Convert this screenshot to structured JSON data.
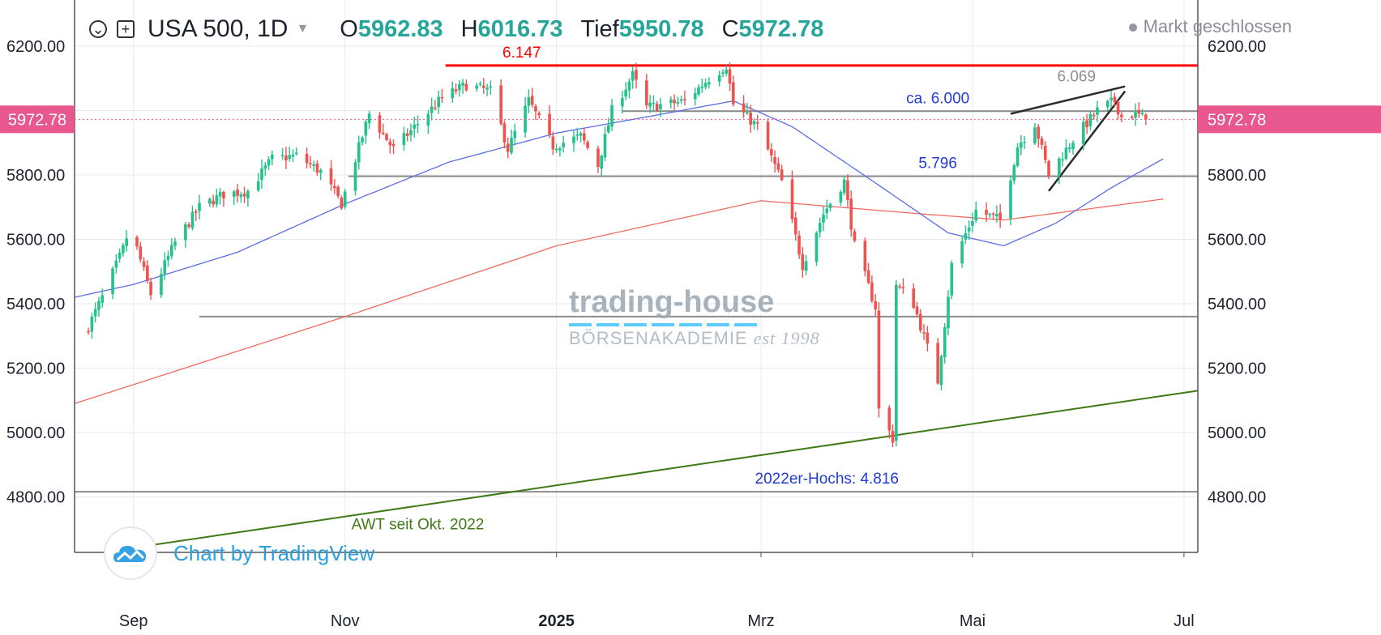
{
  "header": {
    "symbol": "USA 500, 1D",
    "open_label": "O",
    "open": "5962.83",
    "high_label": "H",
    "high": "6016.73",
    "low_label": "Tief",
    "low": "5950.78",
    "close_label": "C",
    "close": "5972.78",
    "icons": [
      "chevron-circle-icon",
      "plus-square-icon",
      "caret-down-icon"
    ]
  },
  "market_status": "Markt geschlossen",
  "branding": {
    "tradingview": "Chart by TradingView",
    "wm_line1": "trading-house",
    "wm_line2": "BÖRSENAKADEMIE",
    "wm_est": "est 1998"
  },
  "colors": {
    "up": "#26c28d",
    "down": "#ef5350",
    "ma50": "#5b6ee6",
    "ma200": "#ef6b61",
    "resistance": "#ff0000",
    "trend": "#3f7a17",
    "price_tag": "#e8578e",
    "grid": "#e6e9f2"
  },
  "chart_data": {
    "type": "candlestick",
    "x_range": [
      "2024-08-15",
      "2025-07-05"
    ],
    "y_range": [
      4650,
      6280
    ],
    "y_ticks": [
      "6200.00",
      "5800.00",
      "5600.00",
      "5400.00",
      "5200.00",
      "5000.00",
      "4800.00"
    ],
    "x_ticks": [
      {
        "label": "Sep",
        "date": "2024-09-01"
      },
      {
        "label": "Nov",
        "date": "2024-11-01"
      },
      {
        "label": "2025",
        "date": "2025-01-01"
      },
      {
        "label": "Mrz",
        "date": "2025-03-01"
      },
      {
        "label": "Mai",
        "date": "2025-05-01"
      },
      {
        "label": "Jul",
        "date": "2025-07-01"
      }
    ],
    "last_price": "5972.78",
    "close_anchors": [
      [
        "2024-08-19",
        5330
      ],
      [
        "2024-08-23",
        5420
      ],
      [
        "2024-08-29",
        5570
      ],
      [
        "2024-08-31",
        5640
      ],
      [
        "2024-09-06",
        5430
      ],
      [
        "2024-09-13",
        5590
      ],
      [
        "2024-09-20",
        5700
      ],
      [
        "2024-09-27",
        5740
      ],
      [
        "2024-10-04",
        5750
      ],
      [
        "2024-10-11",
        5850
      ],
      [
        "2024-10-18",
        5860
      ],
      [
        "2024-10-25",
        5810
      ],
      [
        "2024-10-31",
        5710
      ],
      [
        "2024-11-08",
        5990
      ],
      [
        "2024-11-15",
        5880
      ],
      [
        "2024-11-22",
        5960
      ],
      [
        "2024-11-29",
        6040
      ],
      [
        "2024-12-06",
        6080
      ],
      [
        "2024-12-13",
        6060
      ],
      [
        "2024-12-18",
        5880
      ],
      [
        "2024-12-24",
        6030
      ],
      [
        "2024-12-31",
        5890
      ],
      [
        "2025-01-08",
        5920
      ],
      [
        "2025-01-13",
        5830
      ],
      [
        "2025-01-17",
        6000
      ],
      [
        "2025-01-23",
        6110
      ],
      [
        "2025-01-27",
        6010
      ],
      [
        "2025-02-07",
        6030
      ],
      [
        "2025-02-14",
        6100
      ],
      [
        "2025-02-19",
        6140
      ],
      [
        "2025-02-21",
        6020
      ],
      [
        "2025-02-28",
        5950
      ],
      [
        "2025-03-07",
        5780
      ],
      [
        "2025-03-13",
        5520
      ],
      [
        "2025-03-19",
        5680
      ],
      [
        "2025-03-25",
        5780
      ],
      [
        "2025-03-28",
        5580
      ],
      [
        "2025-04-03",
        5390
      ],
      [
        "2025-04-04",
        5070
      ],
      [
        "2025-04-08",
        4980
      ],
      [
        "2025-04-09",
        5460
      ],
      [
        "2025-04-14",
        5400
      ],
      [
        "2025-04-21",
        5160
      ],
      [
        "2025-04-25",
        5520
      ],
      [
        "2025-05-02",
        5690
      ],
      [
        "2025-05-09",
        5660
      ],
      [
        "2025-05-14",
        5890
      ],
      [
        "2025-05-19",
        5960
      ],
      [
        "2025-05-23",
        5800
      ],
      [
        "2025-05-30",
        5910
      ],
      [
        "2025-06-06",
        6000
      ],
      [
        "2025-06-11",
        6030
      ],
      [
        "2025-06-13",
        5980
      ],
      [
        "2025-06-17",
        5990
      ],
      [
        "2025-06-20",
        5972.78
      ]
    ],
    "ma50_anchors": [
      [
        "2024-08-15",
        5420
      ],
      [
        "2024-09-01",
        5460
      ],
      [
        "2024-10-01",
        5560
      ],
      [
        "2024-11-01",
        5710
      ],
      [
        "2024-12-01",
        5840
      ],
      [
        "2025-01-01",
        5930
      ],
      [
        "2025-02-01",
        5990
      ],
      [
        "2025-02-21",
        6030
      ],
      [
        "2025-03-10",
        5950
      ],
      [
        "2025-04-01",
        5790
      ],
      [
        "2025-04-24",
        5620
      ],
      [
        "2025-05-10",
        5580
      ],
      [
        "2025-05-25",
        5650
      ],
      [
        "2025-06-10",
        5760
      ],
      [
        "2025-06-25",
        5850
      ]
    ],
    "ma200_anchors": [
      [
        "2024-08-15",
        5090
      ],
      [
        "2024-11-01",
        5360
      ],
      [
        "2025-01-01",
        5580
      ],
      [
        "2025-03-01",
        5720
      ],
      [
        "2025-04-15",
        5680
      ],
      [
        "2025-05-10",
        5660
      ],
      [
        "2025-06-25",
        5725
      ]
    ],
    "annotations": [
      {
        "label": "6.147",
        "kind": "resistance",
        "y": 6140,
        "x_start": "2024-11-30",
        "x_end": "2025-07-05",
        "label_x": "2024-12-22"
      },
      {
        "label": "ca. 6.000",
        "kind": "support",
        "y": 5998,
        "x_start": "2025-01-20",
        "x_end": "2025-07-05",
        "label_x": "2025-04-21"
      },
      {
        "label": "5.796",
        "kind": "support",
        "y": 5796,
        "x_start": "2024-11-02",
        "x_end": "2025-07-05",
        "label_x": "2025-04-21"
      },
      {
        "label": "",
        "kind": "support",
        "y": 5360,
        "x_start": "2024-09-20",
        "x_end": "2025-07-05"
      },
      {
        "label": "2022er-Hochs: 4.816",
        "kind": "support",
        "y": 4816,
        "x_start": "2024-08-15",
        "x_end": "2025-07-05",
        "label_x": "2025-03-20"
      },
      {
        "label": "AWT seit Okt. 2022",
        "kind": "trend",
        "from": [
          "2024-09-06",
          4650
        ],
        "to": [
          "2025-07-05",
          5130
        ],
        "label_x": "2024-11-22",
        "label_y": 4700
      },
      {
        "label": "6.069",
        "kind": "wedge-top",
        "from": [
          "2025-05-12",
          5990
        ],
        "to": [
          "2025-06-14",
          6075
        ],
        "label_x": "2025-05-31",
        "label_y": 6090
      },
      {
        "label": "",
        "kind": "wedge-bottom",
        "from": [
          "2025-05-23",
          5750
        ],
        "to": [
          "2025-06-14",
          6060
        ]
      }
    ]
  }
}
